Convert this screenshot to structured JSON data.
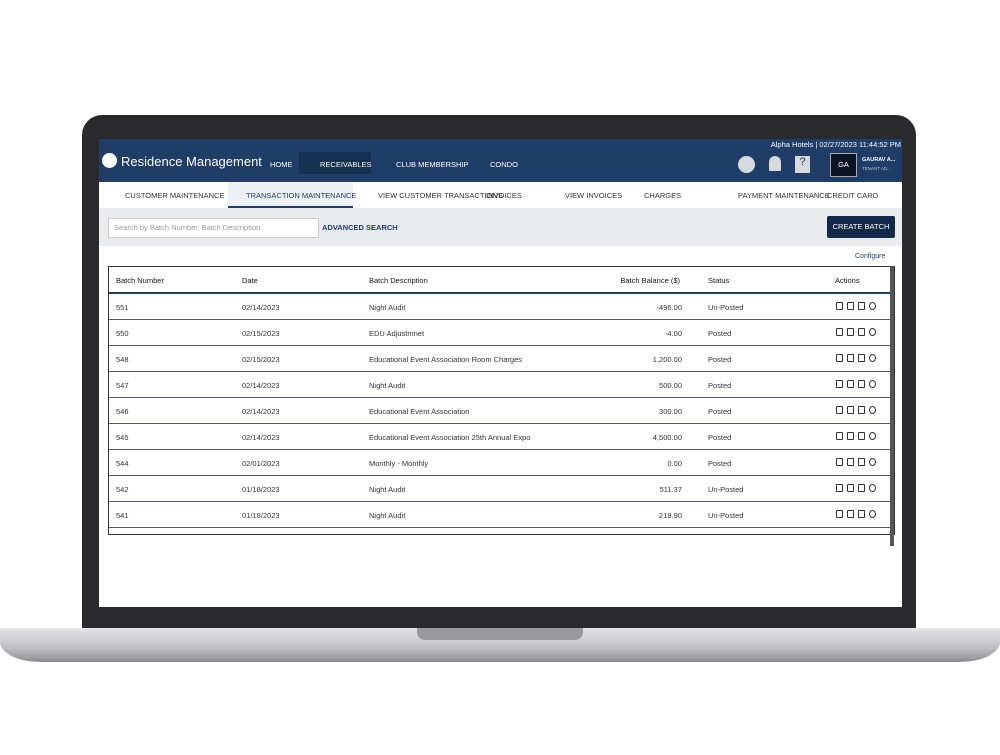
{
  "header": {
    "brand": "Residence Management",
    "top_info": "Alpha Hotels | 02/27/2023 11:44:52 PM",
    "nav": [
      "HOME",
      "RECEIVABLES",
      "CLUB MEMBERSHIP",
      "CONDO"
    ],
    "user_initials": "GA",
    "user_name": "GAURAV A...",
    "user_role": "TENANT AD..."
  },
  "tabs": [
    "CUSTOMER MAINTENANCE",
    "TRANSACTION MAINTENANCE",
    "VIEW CUSTOMER TRANSACTIONS",
    "INVOICES",
    "VIEW INVOICES",
    "CHARGES",
    "PAYMENT MAINTENANCE",
    "CREDIT CARD"
  ],
  "toolbar": {
    "search_placeholder": "Search by Batch Number, Batch Description",
    "advanced_search": "ADVANCED SEARCH",
    "create_batch": "CREATE BATCH",
    "configure": "Configure"
  },
  "table": {
    "columns": [
      "Batch Number",
      "Date",
      "Batch Description",
      "Batch Balance ($)",
      "Status",
      "Actions"
    ],
    "rows": [
      [
        "551",
        "02/14/2023",
        "Night Audit",
        "-496.00",
        "Un-Posted"
      ],
      [
        "550",
        "02/15/2023",
        "EDU Adjustmnet",
        "-4.00",
        "Posted"
      ],
      [
        "548",
        "02/15/2023",
        "Educational Event Association Room Charges",
        "1,200.00",
        "Posted"
      ],
      [
        "547",
        "02/14/2023",
        "Night Audit",
        "500.00",
        "Posted"
      ],
      [
        "546",
        "02/14/2023",
        "Educational Event Association",
        "300.00",
        "Posted"
      ],
      [
        "545",
        "02/14/2023",
        "Educational Event Association 25th Annual Expo",
        "4,500.00",
        "Posted"
      ],
      [
        "544",
        "02/01/2023",
        "Monthly - Monthly",
        "0.00",
        "Posted"
      ],
      [
        "542",
        "01/18/2023",
        "Night Audit",
        "511.37",
        "Un-Posted"
      ],
      [
        "541",
        "01/18/2023",
        "Night Audit",
        "218.90",
        "Un-Posted"
      ]
    ]
  }
}
